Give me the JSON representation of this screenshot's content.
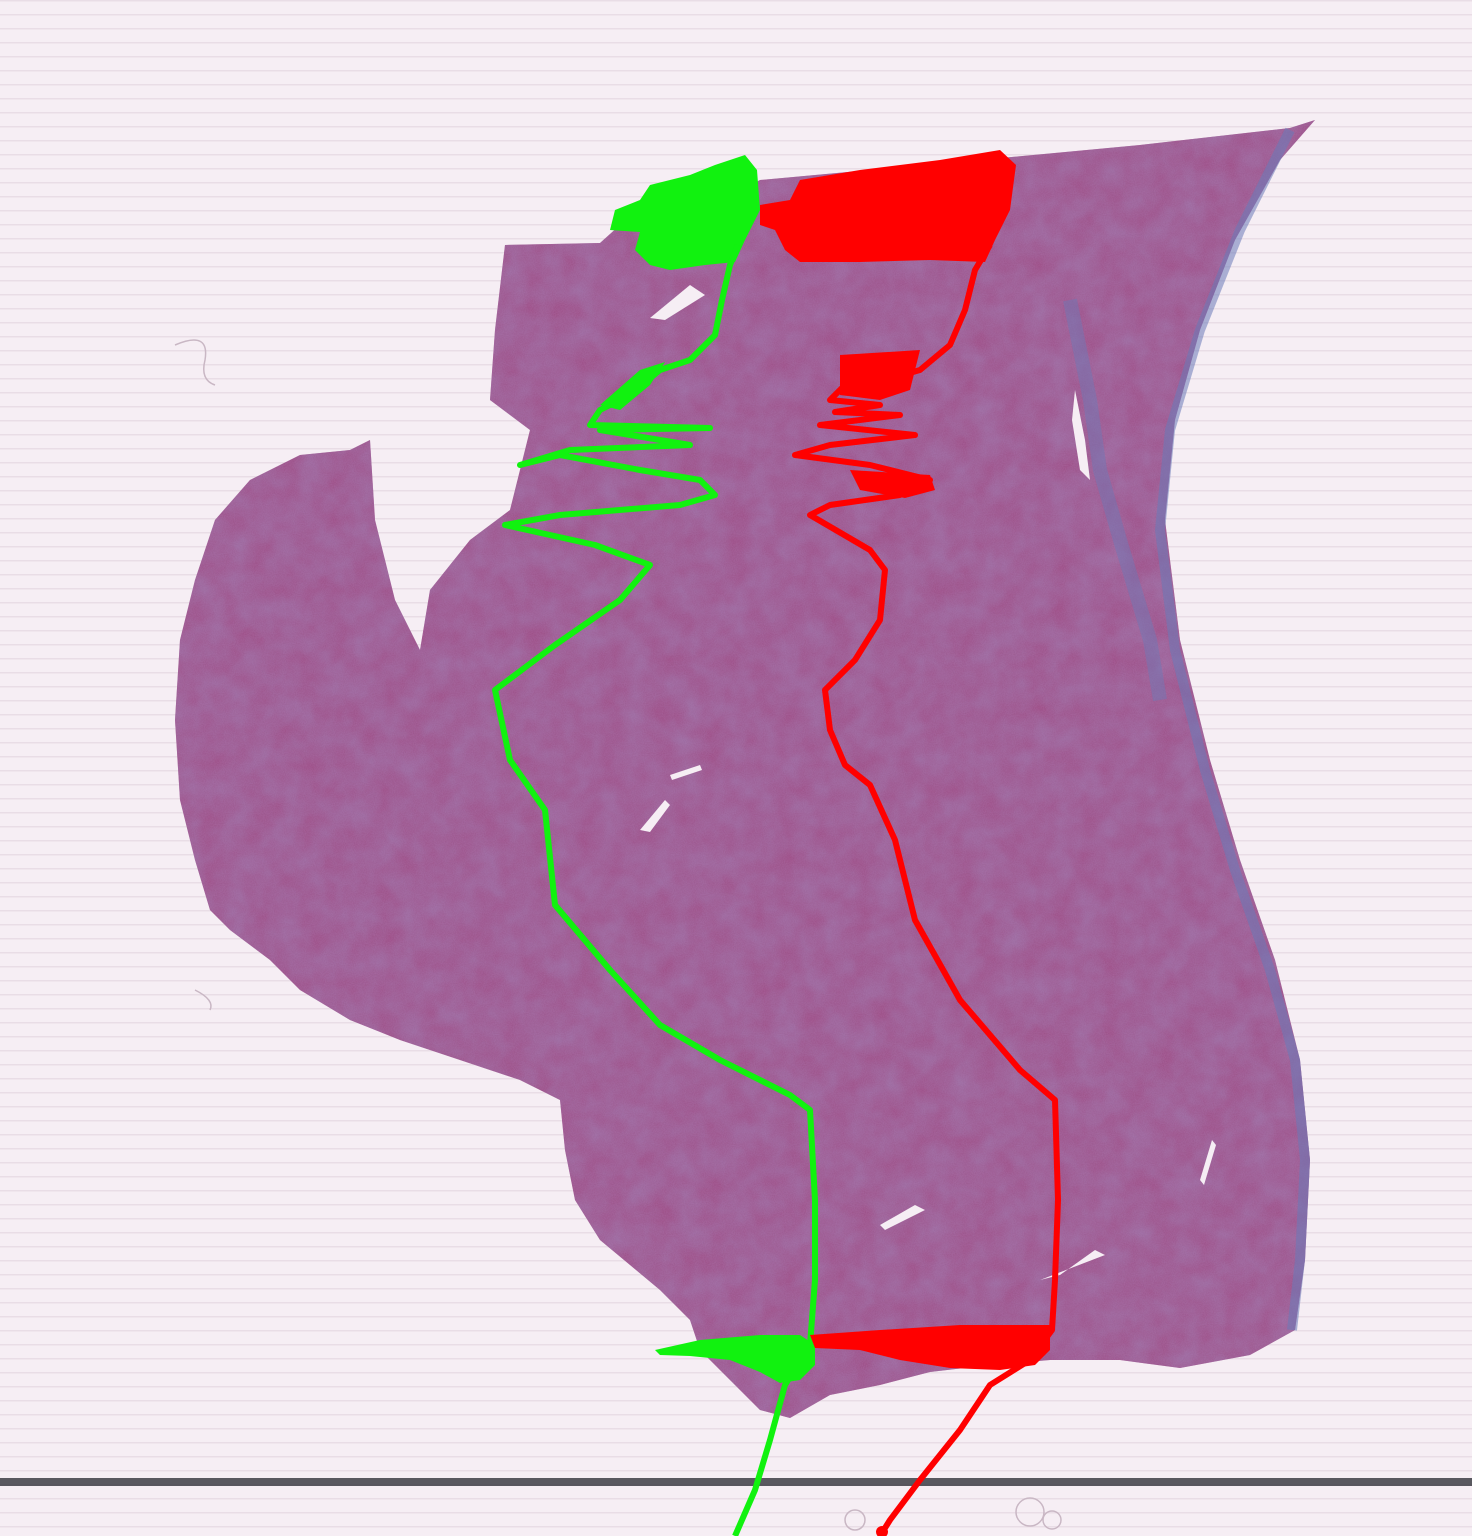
{
  "scene": {
    "background_color": "#f6eef4",
    "stripe_color": "#e9dde6",
    "tissue_color": "#9a4a80",
    "tissue_dark": "#7e2f67",
    "fibrosis_color": "#5a6aa8",
    "green_annotation_color": "#11f20f",
    "red_annotation_color": "#ff0000"
  }
}
